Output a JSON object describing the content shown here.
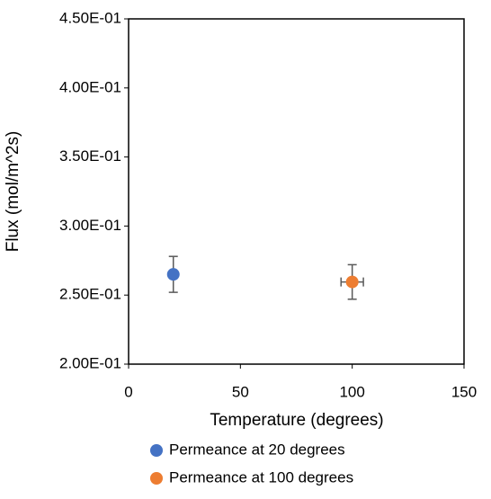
{
  "chart_data": {
    "type": "scatter",
    "x_label": "Temperature (degrees)",
    "y_label": "Flux (mol/m^2s)",
    "xlim": [
      0,
      150
    ],
    "xticks": [
      0,
      50,
      100,
      150
    ],
    "ylim": [
      0.2,
      0.45
    ],
    "yticks": [
      {
        "value": 0.2,
        "label": "2.00E-01"
      },
      {
        "value": 0.25,
        "label": "2.50E-01"
      },
      {
        "value": 0.3,
        "label": "3.00E-01"
      },
      {
        "value": 0.35,
        "label": "3.50E-01"
      },
      {
        "value": 0.4,
        "label": "4.00E-01"
      },
      {
        "value": 0.45,
        "label": "4.50E-01"
      }
    ],
    "grid": false,
    "legend": "bottom",
    "series": [
      {
        "name": "Permeance at 20 degrees",
        "color": "#4472c4",
        "x": [
          20
        ],
        "values": [
          0.265
        ],
        "yerr": [
          0.013
        ]
      },
      {
        "name": "Permeance at 100 degrees",
        "color": "#ed7d31",
        "x": [
          100
        ],
        "values": [
          0.2595
        ],
        "yerr": [
          0.0125
        ],
        "xerr": [
          5
        ]
      }
    ]
  }
}
